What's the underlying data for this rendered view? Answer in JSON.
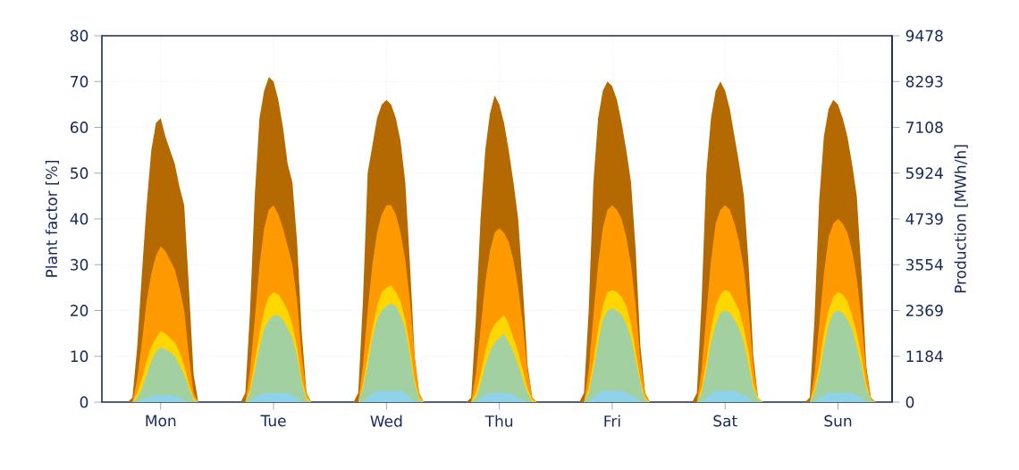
{
  "chart_data": {
    "type": "area",
    "categories": [
      null,
      null,
      null,
      null,
      null,
      null,
      null,
      null,
      null,
      null,
      null,
      null,
      "Mon",
      null,
      null,
      null,
      null,
      null,
      null,
      null,
      null,
      null,
      null,
      null,
      null,
      null,
      null,
      null,
      null,
      null,
      null,
      null,
      null,
      null,
      null,
      null,
      "Tue",
      null,
      null,
      null,
      null,
      null,
      null,
      null,
      null,
      null,
      null,
      null,
      null,
      null,
      null,
      null,
      null,
      null,
      null,
      null,
      null,
      null,
      null,
      null,
      "Wed",
      null,
      null,
      null,
      null,
      null,
      null,
      null,
      null,
      null,
      null,
      null,
      null,
      null,
      null,
      null,
      null,
      null,
      null,
      null,
      null,
      null,
      null,
      null,
      "Thu",
      null,
      null,
      null,
      null,
      null,
      null,
      null,
      null,
      null,
      null,
      null,
      null,
      null,
      null,
      null,
      null,
      null,
      null,
      null,
      null,
      null,
      null,
      null,
      "Fri",
      null,
      null,
      null,
      null,
      null,
      null,
      null,
      null,
      null,
      null,
      null,
      null,
      null,
      null,
      null,
      null,
      null,
      null,
      null,
      null,
      null,
      null,
      null,
      "Sat",
      null,
      null,
      null,
      null,
      null,
      null,
      null,
      null,
      null,
      null,
      null,
      null,
      null,
      null,
      null,
      null,
      null,
      null,
      null,
      null,
      null,
      null,
      null,
      "Sun",
      null,
      null,
      null,
      null,
      null,
      null,
      null,
      null,
      null,
      null,
      null
    ],
    "series": [
      {
        "color": "#b46a00",
        "values": [
          0,
          0,
          0,
          0,
          0,
          0,
          1,
          12,
          28,
          43,
          55,
          61,
          62,
          58,
          55,
          52,
          47,
          43,
          25,
          6,
          0,
          0,
          0,
          0,
          0,
          0,
          0,
          0,
          0,
          0,
          2,
          20,
          45,
          62,
          68,
          71,
          70,
          66,
          60,
          52,
          48,
          35,
          15,
          2,
          0,
          0,
          0,
          0,
          0,
          0,
          0,
          0,
          0,
          0,
          2,
          22,
          50,
          56,
          62,
          65,
          66,
          65,
          62,
          57,
          48,
          30,
          10,
          1,
          0,
          0,
          0,
          0,
          0,
          0,
          0,
          0,
          0,
          0,
          1,
          18,
          40,
          55,
          63,
          67,
          65,
          61,
          55,
          48,
          40,
          25,
          8,
          1,
          0,
          0,
          0,
          0,
          0,
          0,
          0,
          0,
          0,
          0,
          2,
          20,
          48,
          62,
          68,
          70,
          69,
          66,
          61,
          55,
          48,
          33,
          12,
          2,
          0,
          0,
          0,
          0,
          0,
          0,
          0,
          0,
          0,
          0,
          2,
          22,
          50,
          62,
          68,
          70,
          68,
          64,
          58,
          52,
          45,
          30,
          10,
          1,
          0,
          0,
          0,
          0,
          0,
          0,
          0,
          0,
          0,
          0,
          1,
          18,
          44,
          58,
          64,
          66,
          65,
          62,
          58,
          52,
          45,
          28,
          8,
          1,
          0,
          0,
          0,
          0
        ]
      },
      {
        "color": "#ff9900",
        "values": [
          0,
          0,
          0,
          0,
          0,
          0,
          0,
          5,
          13,
          22,
          28,
          32,
          34,
          33,
          31,
          29,
          25,
          20,
          10,
          2,
          0,
          0,
          0,
          0,
          0,
          0,
          0,
          0,
          0,
          0,
          0,
          7,
          18,
          30,
          38,
          42,
          43,
          41,
          38,
          34,
          30,
          22,
          10,
          2,
          0,
          0,
          0,
          0,
          0,
          0,
          0,
          0,
          0,
          0,
          0,
          8,
          20,
          30,
          37,
          41,
          43,
          43,
          41,
          37,
          31,
          22,
          10,
          2,
          0,
          0,
          0,
          0,
          0,
          0,
          0,
          0,
          0,
          0,
          0,
          6,
          16,
          26,
          33,
          37,
          38,
          37,
          35,
          31,
          25,
          17,
          7,
          1,
          0,
          0,
          0,
          0,
          0,
          0,
          0,
          0,
          0,
          0,
          0,
          7,
          19,
          30,
          38,
          42,
          43,
          42,
          40,
          36,
          30,
          21,
          9,
          2,
          0,
          0,
          0,
          0,
          0,
          0,
          0,
          0,
          0,
          0,
          0,
          7,
          19,
          31,
          39,
          42,
          43,
          42,
          39,
          35,
          29,
          20,
          8,
          1,
          0,
          0,
          0,
          0,
          0,
          0,
          0,
          0,
          0,
          0,
          0,
          6,
          17,
          28,
          36,
          39,
          40,
          39,
          37,
          33,
          27,
          18,
          7,
          1,
          0,
          0,
          0,
          0
        ]
      },
      {
        "color": "#ffd700",
        "values": [
          0,
          0,
          0,
          0,
          0,
          0,
          0,
          2,
          5,
          9,
          12,
          14,
          15.5,
          15,
          14,
          13,
          11,
          8,
          4,
          1,
          0,
          0,
          0,
          0,
          0,
          0,
          0,
          0,
          0,
          0,
          0,
          3,
          9,
          15,
          20,
          23,
          24,
          23.5,
          22,
          20,
          17,
          12,
          5,
          1,
          0,
          0,
          0,
          0,
          0,
          0,
          0,
          0,
          0,
          0,
          0,
          4,
          10,
          16,
          21,
          24,
          25,
          25.5,
          24,
          22,
          18,
          12,
          5,
          1,
          0,
          0,
          0,
          0,
          0,
          0,
          0,
          0,
          0,
          0,
          0,
          2,
          6,
          11,
          15,
          17,
          18,
          19,
          17,
          14,
          11,
          7,
          3,
          0.5,
          0,
          0,
          0,
          0,
          0,
          0,
          0,
          0,
          0,
          0,
          0,
          3,
          9,
          16,
          21,
          24,
          24.5,
          24,
          23,
          21,
          17,
          11,
          5,
          1,
          0,
          0,
          0,
          0,
          0,
          0,
          0,
          0,
          0,
          0,
          0,
          3,
          9,
          16,
          21,
          23.5,
          24.5,
          24,
          22,
          20,
          16,
          11,
          4,
          1,
          0,
          0,
          0,
          0,
          0,
          0,
          0,
          0,
          0,
          0,
          0,
          3,
          8,
          15,
          20,
          23,
          24,
          23.5,
          22,
          19,
          15,
          10,
          4,
          0.5,
          0,
          0,
          0,
          0
        ]
      },
      {
        "color": "#a3d0a0",
        "values": [
          0,
          0,
          0,
          0,
          0,
          0,
          0,
          1,
          3,
          6,
          9,
          11,
          12,
          11.5,
          11,
          10,
          8,
          6,
          3,
          0.5,
          0,
          0,
          0,
          0,
          0,
          0,
          0,
          0,
          0,
          0,
          0,
          2,
          7,
          12,
          16,
          18,
          19,
          19,
          18,
          16,
          14,
          10,
          4,
          0.5,
          0,
          0,
          0,
          0,
          0,
          0,
          0,
          0,
          0,
          0,
          0,
          3,
          8,
          14,
          18,
          20,
          21,
          21.5,
          21,
          19,
          16,
          10,
          4,
          0.5,
          0,
          0,
          0,
          0,
          0,
          0,
          0,
          0,
          0,
          0,
          0,
          1,
          4,
          8,
          11,
          13,
          14,
          15,
          13,
          11,
          8,
          5,
          2,
          0,
          0,
          0,
          0,
          0,
          0,
          0,
          0,
          0,
          0,
          0,
          0,
          2,
          7,
          13,
          18,
          20,
          20.5,
          20,
          19,
          17,
          14,
          9,
          4,
          0.5,
          0,
          0,
          0,
          0,
          0,
          0,
          0,
          0,
          0,
          0,
          0,
          2,
          7,
          13,
          17,
          19.5,
          20,
          19.5,
          18,
          16,
          13,
          8,
          3,
          0.5,
          0,
          0,
          0,
          0,
          0,
          0,
          0,
          0,
          0,
          0,
          0,
          2,
          6,
          12,
          17,
          19.5,
          20,
          19.5,
          18,
          16,
          12,
          8,
          3,
          0.5,
          0,
          0,
          0,
          0
        ]
      },
      {
        "color": "#8fd3ea",
        "values": [
          0,
          0,
          0,
          0,
          0,
          0,
          0,
          0,
          0.5,
          1,
          1.3,
          1.5,
          1.5,
          1.5,
          1.5,
          1.3,
          1,
          0.5,
          0,
          0,
          0,
          0,
          0,
          0,
          0,
          0,
          0,
          0,
          0,
          0,
          0,
          0,
          1,
          1.5,
          2,
          2,
          2,
          2,
          2,
          2,
          1.5,
          1,
          0,
          0,
          0,
          0,
          0,
          0,
          0,
          0,
          0,
          0,
          0,
          0,
          0,
          0,
          1,
          2,
          2.5,
          2.5,
          2.5,
          2.5,
          2.5,
          2.5,
          2,
          1,
          0,
          0,
          0,
          0,
          0,
          0,
          0,
          0,
          0,
          0,
          0,
          0,
          0,
          0,
          1,
          1.5,
          2,
          2,
          2,
          2,
          2,
          1.5,
          1,
          0.5,
          0,
          0,
          0,
          0,
          0,
          0,
          0,
          0,
          0,
          0,
          0,
          0,
          0,
          0,
          1,
          2,
          2.5,
          2.5,
          2.5,
          2.5,
          2.5,
          2,
          1.5,
          1,
          0,
          0,
          0,
          0,
          0,
          0,
          0,
          0,
          0,
          0,
          0,
          0,
          0,
          0,
          1,
          2,
          2.5,
          2.5,
          2.5,
          2.5,
          2.5,
          2,
          1.5,
          1,
          0,
          0,
          0,
          0,
          0,
          0,
          0,
          0,
          0,
          0,
          0,
          0,
          0,
          0,
          1,
          1.5,
          2,
          2,
          2,
          2,
          2,
          2,
          1.5,
          1,
          0,
          0,
          0,
          0,
          0,
          0
        ]
      }
    ],
    "ylim": [
      0,
      80
    ],
    "yticks": [
      0,
      10,
      20,
      30,
      40,
      50,
      60,
      70,
      80
    ],
    "y2lim": [
      0,
      9478
    ],
    "y2ticks": [
      0,
      1184,
      2369,
      3554,
      4739,
      5924,
      7108,
      8293,
      9478
    ],
    "ylabel": "Plant factor [%]",
    "y2label": "Production [MWh/h]",
    "grid": true
  }
}
